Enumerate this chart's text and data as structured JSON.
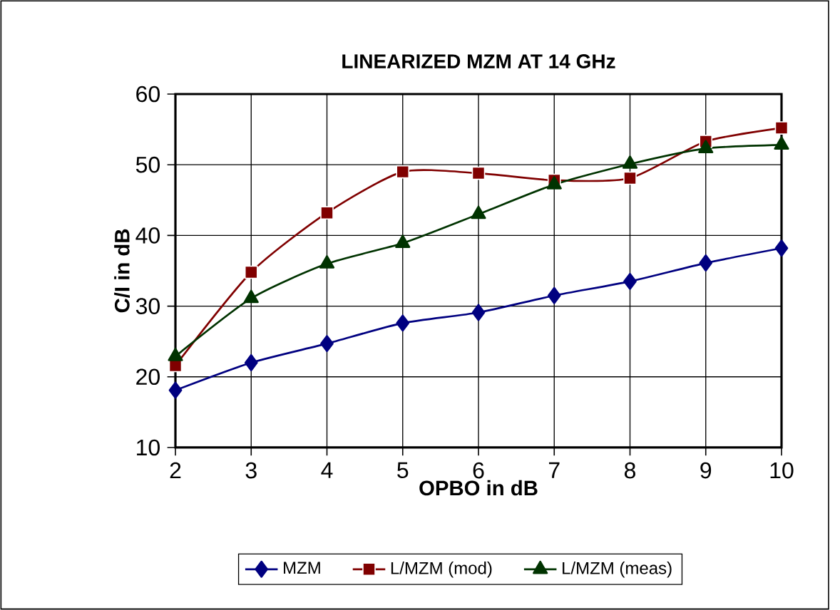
{
  "chart_data": {
    "type": "line",
    "title": "LINEARIZED MZM AT 14 GHz",
    "xlabel": "OPBO in dB",
    "ylabel": "C/I  in dB",
    "x": [
      2,
      3,
      4,
      5,
      6,
      7,
      8,
      9,
      10
    ],
    "series": [
      {
        "name": "MZM",
        "color": "#000080",
        "marker": "diamond",
        "values": [
          18.1,
          22.0,
          24.7,
          27.6,
          29.1,
          31.5,
          33.5,
          36.1,
          38.2
        ]
      },
      {
        "name": "L/MZM (mod)",
        "color": "#800000",
        "marker": "square",
        "values": [
          21.6,
          34.8,
          43.2,
          49.0,
          48.8,
          47.8,
          48.1,
          53.3,
          55.2
        ]
      },
      {
        "name": "L/MZM (meas)",
        "color": "#003300",
        "marker": "triangle",
        "values": [
          22.9,
          31.1,
          36.0,
          38.9,
          43.0,
          47.2,
          50.1,
          52.3,
          52.8
        ]
      }
    ],
    "xlim": [
      2,
      10
    ],
    "xticks": [
      2,
      3,
      4,
      5,
      6,
      7,
      8,
      9,
      10
    ],
    "ylim": [
      10,
      60
    ],
    "yticks": [
      10,
      20,
      30,
      40,
      50,
      60
    ],
    "grid": true,
    "legend": "bottom"
  }
}
